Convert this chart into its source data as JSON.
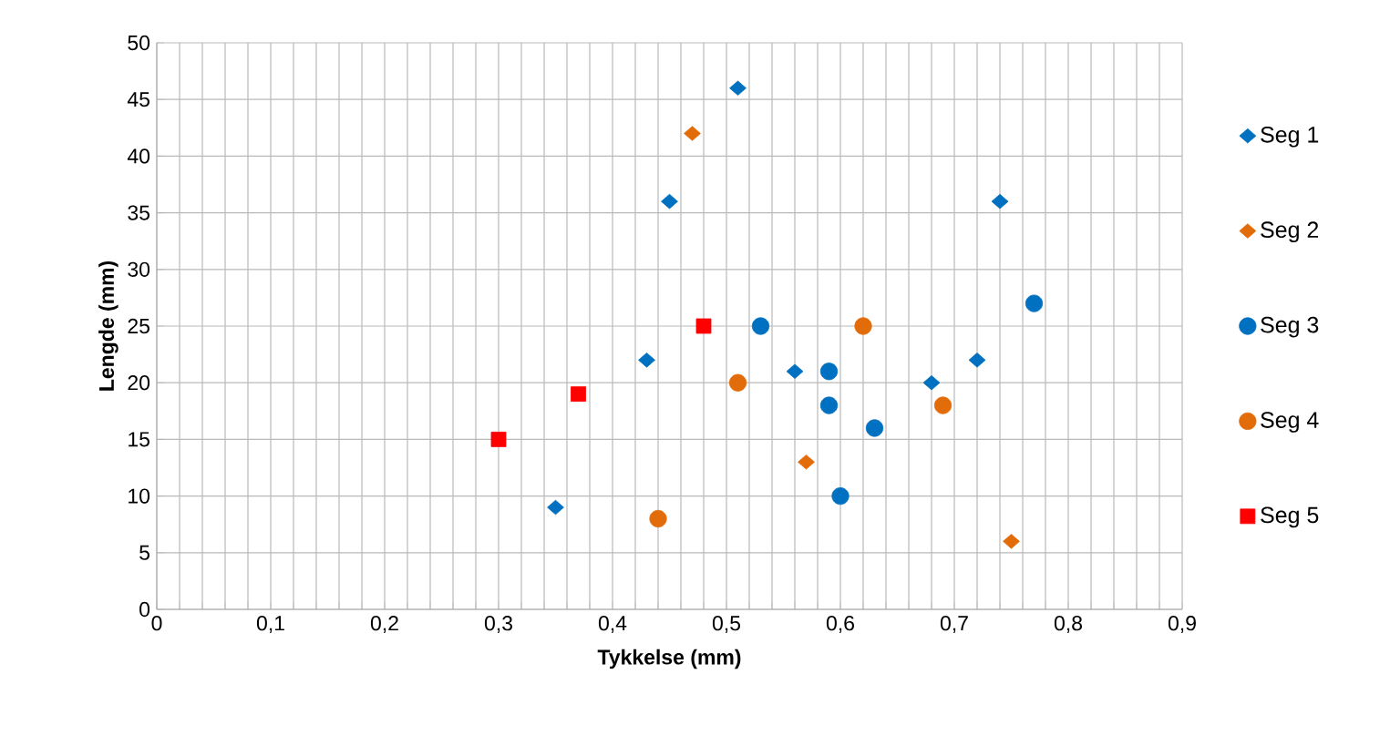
{
  "chart_data": {
    "type": "scatter",
    "xlabel": "Tykkelse (mm)",
    "ylabel": "Lengde (mm)",
    "xlim": [
      0,
      0.9
    ],
    "ylim": [
      0,
      50
    ],
    "xticks": [
      {
        "value": 0,
        "label": "0"
      },
      {
        "value": 0.02,
        "label": null
      },
      {
        "value": 0.04,
        "label": null
      },
      {
        "value": 0.06,
        "label": null
      },
      {
        "value": 0.08,
        "label": null
      },
      {
        "value": 0.1,
        "label": "0,1"
      },
      {
        "value": 0.12,
        "label": null
      },
      {
        "value": 0.14,
        "label": null
      },
      {
        "value": 0.16,
        "label": null
      },
      {
        "value": 0.18,
        "label": null
      },
      {
        "value": 0.2,
        "label": "0,2"
      },
      {
        "value": 0.22,
        "label": null
      },
      {
        "value": 0.24,
        "label": null
      },
      {
        "value": 0.26,
        "label": null
      },
      {
        "value": 0.28,
        "label": null
      },
      {
        "value": 0.3,
        "label": "0,3"
      },
      {
        "value": 0.32,
        "label": null
      },
      {
        "value": 0.34,
        "label": null
      },
      {
        "value": 0.36,
        "label": null
      },
      {
        "value": 0.38,
        "label": null
      },
      {
        "value": 0.4,
        "label": "0,4"
      },
      {
        "value": 0.42,
        "label": null
      },
      {
        "value": 0.44,
        "label": null
      },
      {
        "value": 0.46,
        "label": null
      },
      {
        "value": 0.48,
        "label": null
      },
      {
        "value": 0.5,
        "label": "0,5"
      },
      {
        "value": 0.52,
        "label": null
      },
      {
        "value": 0.54,
        "label": null
      },
      {
        "value": 0.56,
        "label": null
      },
      {
        "value": 0.58,
        "label": null
      },
      {
        "value": 0.6,
        "label": "0,6"
      },
      {
        "value": 0.62,
        "label": null
      },
      {
        "value": 0.64,
        "label": null
      },
      {
        "value": 0.66,
        "label": null
      },
      {
        "value": 0.68,
        "label": null
      },
      {
        "value": 0.7,
        "label": "0,7"
      },
      {
        "value": 0.72,
        "label": null
      },
      {
        "value": 0.74,
        "label": null
      },
      {
        "value": 0.76,
        "label": null
      },
      {
        "value": 0.78,
        "label": null
      },
      {
        "value": 0.8,
        "label": "0,8"
      },
      {
        "value": 0.82,
        "label": null
      },
      {
        "value": 0.84,
        "label": null
      },
      {
        "value": 0.86,
        "label": null
      },
      {
        "value": 0.88,
        "label": null
      },
      {
        "value": 0.9,
        "label": "0,9"
      }
    ],
    "yticks": [
      0,
      5,
      10,
      15,
      20,
      25,
      30,
      35,
      40,
      45,
      50
    ],
    "grid": true,
    "legend": "right",
    "series": [
      {
        "name": "Seg 1",
        "color": "#0070c0",
        "marker": "diamond",
        "x": [
          0.51,
          0.45,
          0.43,
          0.35,
          0.56,
          0.68,
          0.72,
          0.74
        ],
        "values": [
          46,
          36,
          22,
          9,
          21,
          20,
          22,
          36
        ]
      },
      {
        "name": "Seg 2",
        "color": "#e36c0a",
        "marker": "diamond",
        "x": [
          0.47,
          0.57,
          0.75
        ],
        "values": [
          42,
          13,
          6
        ]
      },
      {
        "name": "Seg 3",
        "color": "#0070c0",
        "marker": "circle",
        "x": [
          0.53,
          0.59,
          0.59,
          0.63,
          0.6,
          0.77
        ],
        "values": [
          25,
          21,
          18,
          16,
          10,
          27
        ]
      },
      {
        "name": "Seg 4",
        "color": "#e36c0a",
        "marker": "circle",
        "x": [
          0.44,
          0.51,
          0.62,
          0.69
        ],
        "values": [
          8,
          20,
          25,
          18
        ]
      },
      {
        "name": "Seg 5",
        "color": "#ff0000",
        "marker": "square",
        "x": [
          0.3,
          0.37,
          0.48
        ],
        "values": [
          15,
          19,
          25
        ]
      }
    ]
  }
}
